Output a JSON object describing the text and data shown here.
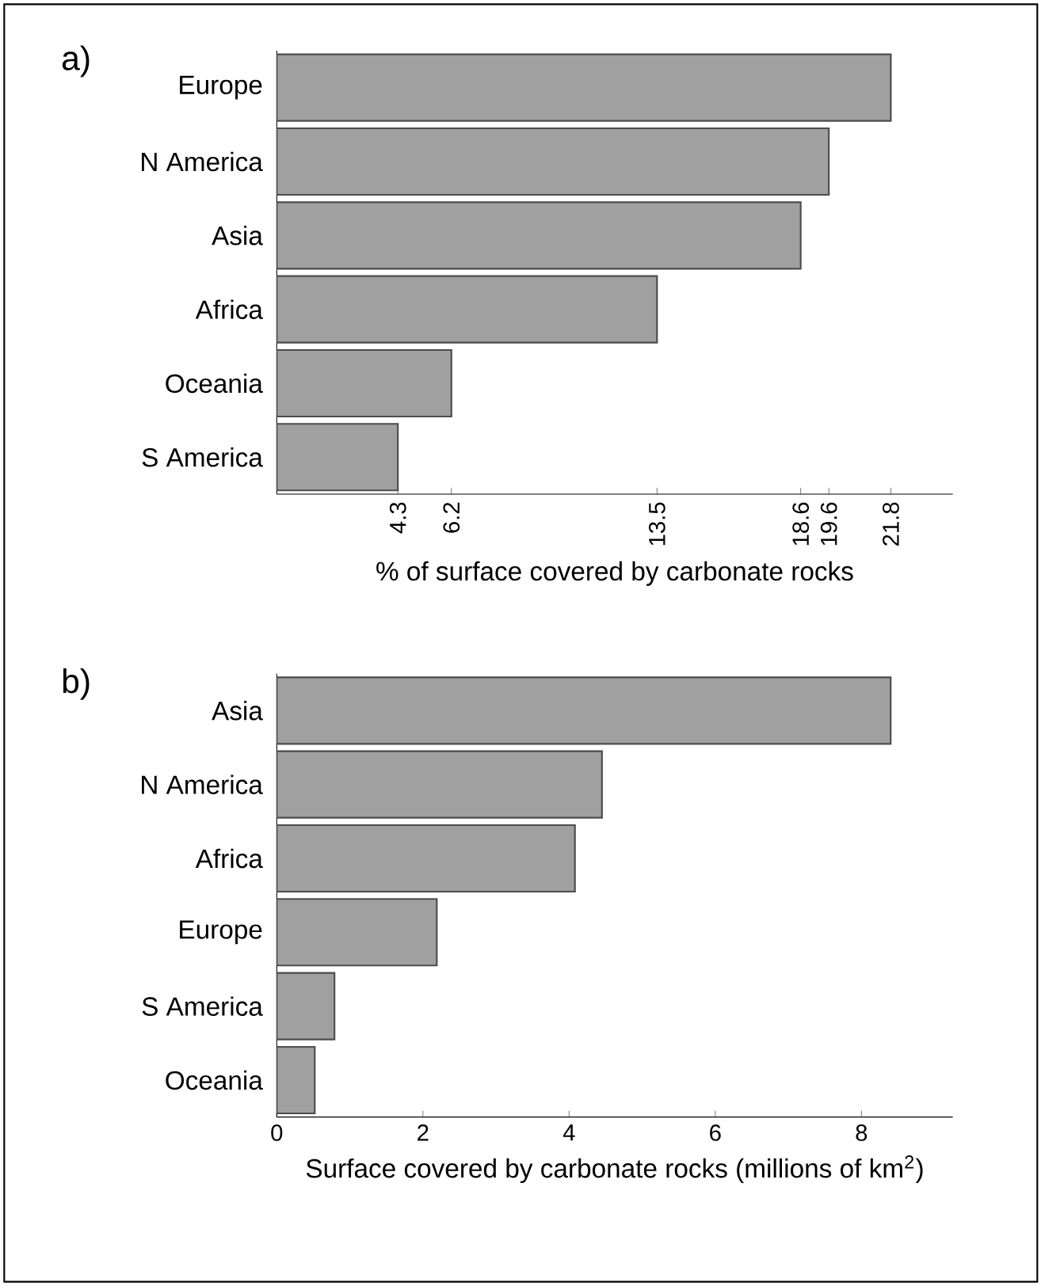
{
  "chart_data": [
    {
      "type": "bar",
      "orientation": "horizontal",
      "title": "a)",
      "xlabel": "% of surface covered by carbonate rocks",
      "categories": [
        "Europe",
        "N America",
        "Asia",
        "Africa",
        "Oceania",
        "S America"
      ],
      "values": [
        21.8,
        19.6,
        18.6,
        13.5,
        6.2,
        4.3
      ],
      "color": "#a0a0a0",
      "xlim": [
        0,
        24
      ],
      "xticks": [
        4.3,
        6.2,
        13.5,
        18.6,
        19.6,
        21.8
      ]
    },
    {
      "type": "bar",
      "orientation": "horizontal",
      "title": "b)",
      "xlabel": "Surface covered by carbonate rocks (millions of km$^{2}$)",
      "categories": [
        "Asia",
        "N America",
        "Africa",
        "Europe",
        "S America",
        "Oceania"
      ],
      "values": [
        8.4,
        4.45,
        4.08,
        2.19,
        0.79,
        0.52
      ],
      "color": "#a0a0a0",
      "xlim": [
        0,
        9.25
      ],
      "xticks": [
        0,
        2,
        4,
        6,
        8
      ]
    }
  ]
}
